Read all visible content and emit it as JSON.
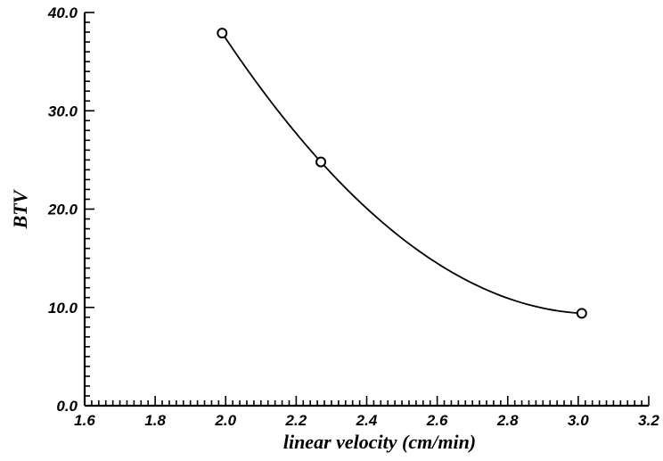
{
  "chart_data": {
    "type": "line",
    "title": "",
    "xlabel": "linear velocity (cm/min)",
    "ylabel": "BTV",
    "xlim": [
      1.6,
      3.2
    ],
    "ylim": [
      0.0,
      40.0
    ],
    "x_ticks": [
      "1.6",
      "1.8",
      "2.0",
      "2.2",
      "2.4",
      "2.6",
      "2.8",
      "3.0",
      "3.2"
    ],
    "y_ticks": [
      "0.0",
      "10.0",
      "20.0",
      "30.0",
      "40.0"
    ],
    "grid": false,
    "legend": "none",
    "series": [
      {
        "marker": "open-circle",
        "x": [
          1.99,
          2.27,
          3.01
        ],
        "y": [
          37.9,
          24.8,
          9.4
        ]
      }
    ],
    "colors": {
      "line": "#000000",
      "background": "#ffffff"
    }
  }
}
